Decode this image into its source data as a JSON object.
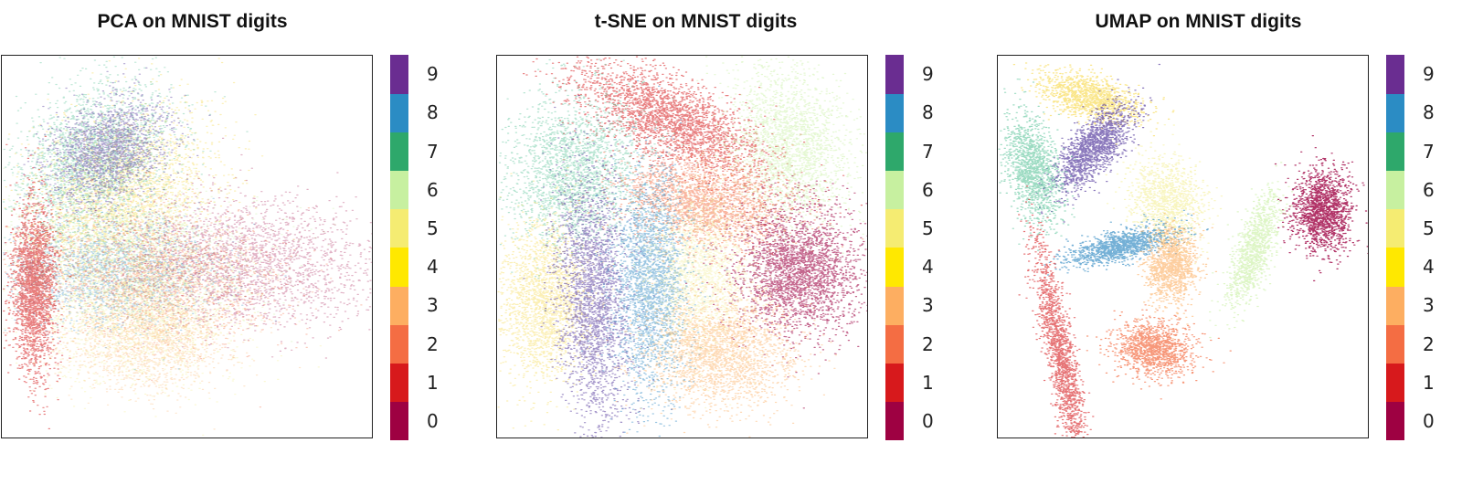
{
  "chart_data": [
    {
      "type": "scatter",
      "title": "PCA on MNIST digits",
      "xlabel": "",
      "ylabel": "",
      "clusters": [
        {
          "label": "0",
          "region": "right-center diffuse"
        },
        {
          "label": "1",
          "region": "left edge crescent"
        },
        {
          "label": "2",
          "region": "center mixed"
        },
        {
          "label": "3",
          "region": "lower center"
        },
        {
          "label": "4",
          "region": "upper left mixed"
        },
        {
          "label": "5",
          "region": "lower center"
        },
        {
          "label": "6",
          "region": "center mixed"
        },
        {
          "label": "7",
          "region": "upper left"
        },
        {
          "label": "8",
          "region": "center mixed"
        },
        {
          "label": "9",
          "region": "upper left"
        }
      ],
      "colorbar": {
        "ticks": [
          "0",
          "1",
          "2",
          "3",
          "4",
          "5",
          "6",
          "7",
          "8",
          "9"
        ]
      }
    },
    {
      "type": "scatter",
      "title": "t-SNE on MNIST digits",
      "xlabel": "",
      "ylabel": "",
      "clusters": [
        {
          "label": "0",
          "region": "right"
        },
        {
          "label": "1",
          "region": "top center"
        },
        {
          "label": "2",
          "region": "center"
        },
        {
          "label": "3",
          "region": "bottom center"
        },
        {
          "label": "4",
          "region": "left center-bottom"
        },
        {
          "label": "5",
          "region": "center bottom"
        },
        {
          "label": "6",
          "region": "top right"
        },
        {
          "label": "7",
          "region": "upper left"
        },
        {
          "label": "8",
          "region": "center vertical"
        },
        {
          "label": "9",
          "region": "left center vertical"
        }
      ],
      "colorbar": {
        "ticks": [
          "0",
          "1",
          "2",
          "3",
          "4",
          "5",
          "6",
          "7",
          "8",
          "9"
        ]
      }
    },
    {
      "type": "scatter",
      "title": "UMAP on MNIST digits",
      "xlabel": "",
      "ylabel": "",
      "clusters": [
        {
          "label": "0",
          "region": "right"
        },
        {
          "label": "1",
          "region": "lower left elongated"
        },
        {
          "label": "2",
          "region": "bottom center"
        },
        {
          "label": "3",
          "region": "center"
        },
        {
          "label": "4",
          "region": "top left"
        },
        {
          "label": "5",
          "region": "center"
        },
        {
          "label": "6",
          "region": "center right"
        },
        {
          "label": "7",
          "region": "left"
        },
        {
          "label": "8",
          "region": "center left"
        },
        {
          "label": "9",
          "region": "upper left"
        }
      ],
      "colorbar": {
        "ticks": [
          "0",
          "1",
          "2",
          "3",
          "4",
          "5",
          "6",
          "7",
          "8",
          "9"
        ]
      }
    }
  ],
  "palette": [
    "#9e0142",
    "#d53e4f",
    "#f46d43",
    "#fdae61",
    "#fee08b",
    "#ffffbf",
    "#e6f598",
    "#abdda4",
    "#66c2a5",
    "#3288bd",
    "#5e4fa2"
  ],
  "colorbar_colors": [
    "#9e0142",
    "#d7191c",
    "#f46d43",
    "#fdae61",
    "#ffe800",
    "#f5ec72",
    "#c7f0a0",
    "#2ea86b",
    "#2b8cc4",
    "#6a2d91"
  ]
}
